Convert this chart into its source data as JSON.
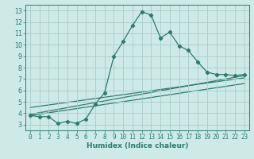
{
  "xlabel": "Humidex (Indice chaleur)",
  "background_color": "#ceeae6",
  "grid_color": "#aaccc8",
  "line_color": "#2d7a6e",
  "spine_color": "#2d7a6e",
  "xlim": [
    -0.5,
    23.5
  ],
  "ylim": [
    2.5,
    13.5
  ],
  "xticks": [
    0,
    1,
    2,
    3,
    4,
    5,
    6,
    7,
    8,
    9,
    10,
    11,
    12,
    13,
    14,
    15,
    16,
    17,
    18,
    19,
    20,
    21,
    22,
    23
  ],
  "yticks": [
    3,
    4,
    5,
    6,
    7,
    8,
    9,
    10,
    11,
    12,
    13
  ],
  "main_x": [
    0,
    1,
    2,
    3,
    4,
    5,
    6,
    7,
    8,
    9,
    10,
    11,
    12,
    13,
    14,
    15,
    16,
    17,
    18,
    19,
    20,
    21,
    22,
    23
  ],
  "main_y": [
    3.8,
    3.7,
    3.7,
    3.1,
    3.3,
    3.1,
    3.5,
    4.8,
    5.8,
    9.0,
    10.3,
    11.7,
    12.9,
    12.6,
    10.6,
    11.1,
    9.9,
    9.5,
    8.5,
    7.6,
    7.4,
    7.4,
    7.3,
    7.4
  ],
  "line2_x": [
    0,
    23
  ],
  "line2_y": [
    3.9,
    7.3
  ],
  "line3_x": [
    0,
    23
  ],
  "line3_y": [
    4.5,
    7.1
  ],
  "line4_x": [
    0,
    23
  ],
  "line4_y": [
    3.8,
    6.6
  ],
  "xlabel_fontsize": 6.5,
  "tick_fontsize": 5.5,
  "linewidth": 0.9,
  "markersize": 2.2
}
